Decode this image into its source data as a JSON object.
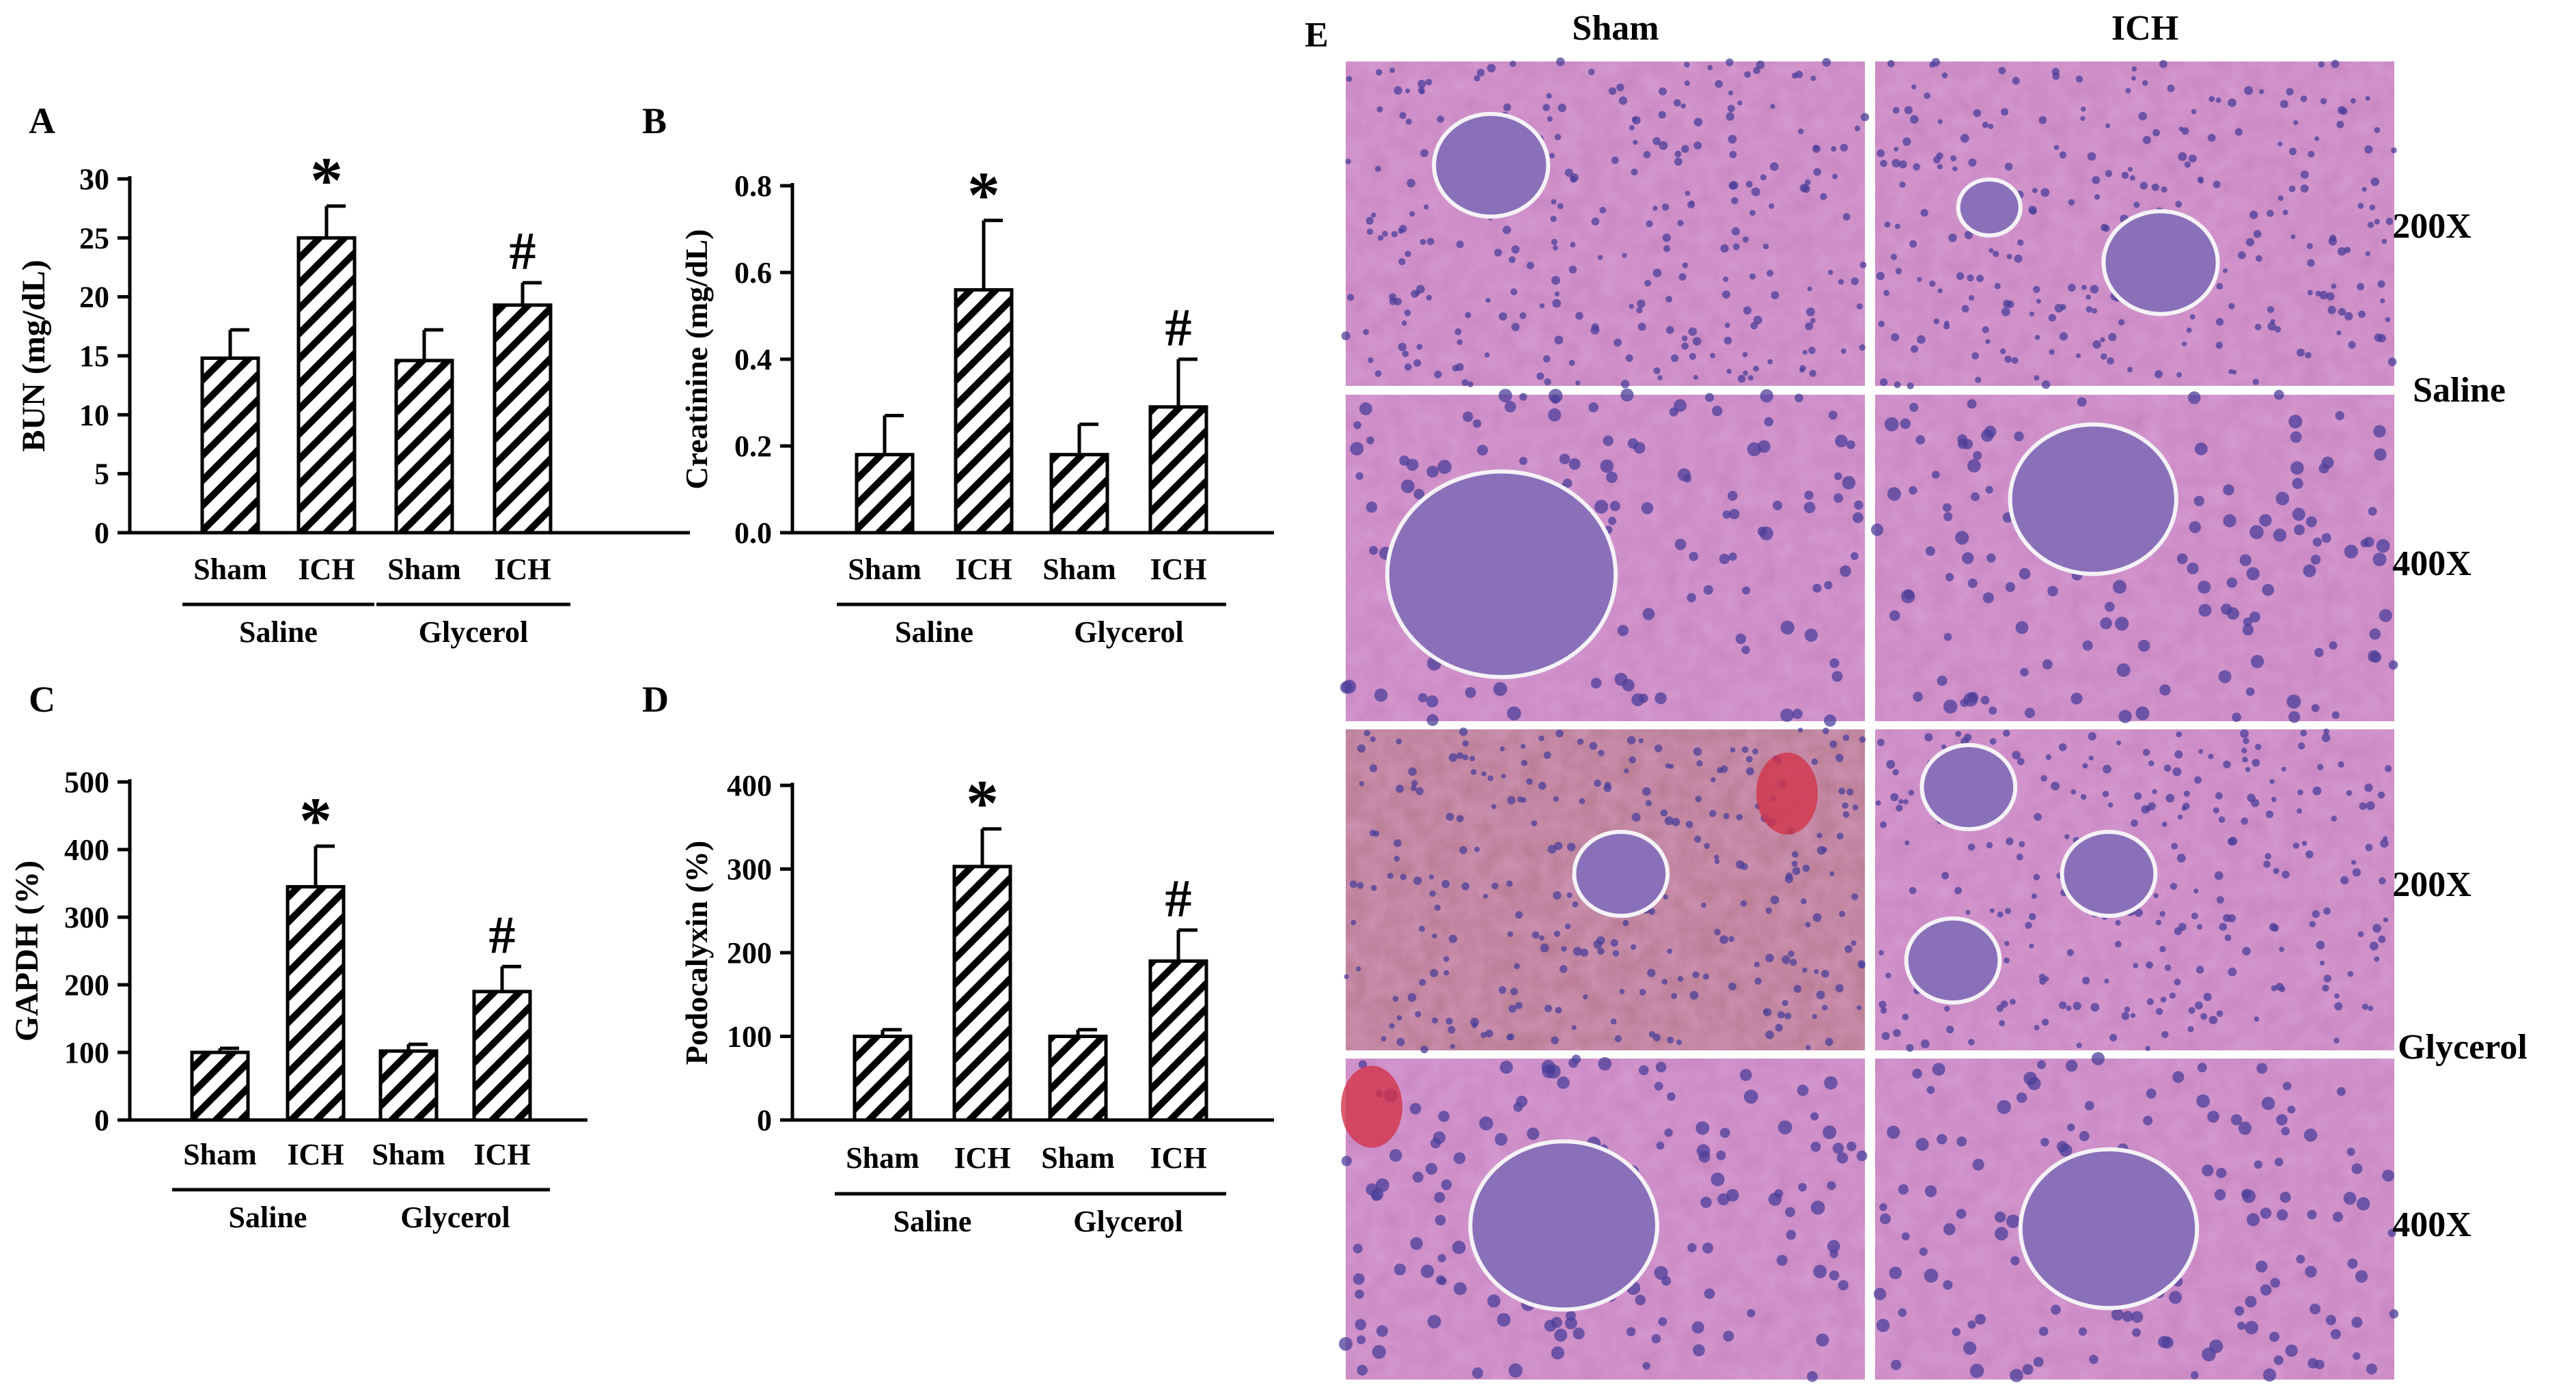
{
  "colors": {
    "ink": "#000000",
    "background": "#ffffff",
    "tissue_pink": "#c37fbc",
    "tissue_nuclei": "#4b3f9a",
    "blood": "#d2344a"
  },
  "chart_data": [
    {
      "panel": "A",
      "type": "bar",
      "title": "",
      "xlabel": "",
      "ylabel": "BUN (mg/dL)",
      "ylim": [
        0,
        30
      ],
      "yticks": [
        0,
        5,
        10,
        15,
        20,
        25,
        30
      ],
      "categories": [
        "Sham",
        "ICH",
        "Sham",
        "ICH"
      ],
      "groups": [
        {
          "label": "Saline",
          "span": [
            0,
            1
          ]
        },
        {
          "label": "Glycerol",
          "span": [
            2,
            3
          ]
        }
      ],
      "series": [
        {
          "values": [
            14.8,
            25.0,
            14.6,
            19.3
          ],
          "errors": [
            2.4,
            2.7,
            2.6,
            1.9
          ],
          "annotations": [
            "",
            "*",
            "",
            "#"
          ]
        }
      ],
      "grid": false
    },
    {
      "panel": "B",
      "type": "bar",
      "title": "",
      "xlabel": "",
      "ylabel": "Creatinine (mg/dL)",
      "ylim": [
        0,
        0.8
      ],
      "yticks": [
        "0.0",
        "0.2",
        "0.4",
        "0.6",
        "0.8"
      ],
      "categories": [
        "Sham",
        "ICH",
        "Sham",
        "ICH"
      ],
      "groups": [
        {
          "label": "Saline",
          "span": [
            0,
            1
          ]
        },
        {
          "label": "Glycerol",
          "span": [
            2,
            3
          ]
        }
      ],
      "series": [
        {
          "values": [
            0.18,
            0.56,
            0.18,
            0.29
          ],
          "errors": [
            0.09,
            0.16,
            0.07,
            0.11
          ],
          "annotations": [
            "",
            "*",
            "",
            "#"
          ]
        }
      ],
      "grid": false
    },
    {
      "panel": "C",
      "type": "bar",
      "title": "",
      "xlabel": "",
      "ylabel": "GAPDH (%)",
      "ylim": [
        0,
        500
      ],
      "yticks": [
        0,
        100,
        200,
        300,
        400,
        500
      ],
      "categories": [
        "Sham",
        "ICH",
        "Sham",
        "ICH"
      ],
      "groups": [
        {
          "label": "Saline",
          "span": [
            0,
            1
          ]
        },
        {
          "label": "Glycerol",
          "span": [
            2,
            3
          ]
        }
      ],
      "series": [
        {
          "values": [
            100,
            345,
            102,
            190
          ],
          "errors": [
            6,
            60,
            10,
            37
          ],
          "annotations": [
            "",
            "*",
            "",
            "#"
          ]
        }
      ],
      "grid": false
    },
    {
      "panel": "D",
      "type": "bar",
      "title": "",
      "xlabel": "",
      "ylabel": "Podocalyxin (%)",
      "ylim": [
        0,
        400
      ],
      "yticks": [
        0,
        100,
        200,
        300,
        400
      ],
      "categories": [
        "Sham",
        "ICH",
        "Sham",
        "ICH"
      ],
      "groups": [
        {
          "label": "Saline",
          "span": [
            0,
            1
          ]
        },
        {
          "label": "Glycerol",
          "span": [
            2,
            3
          ]
        }
      ],
      "series": [
        {
          "values": [
            100,
            303,
            100,
            190
          ],
          "errors": [
            8,
            45,
            8,
            37
          ],
          "annotations": [
            "",
            "*",
            "",
            "#"
          ]
        }
      ],
      "grid": false
    }
  ],
  "histology": {
    "panel": "E",
    "column_headers": [
      "Sham",
      "ICH"
    ],
    "row_groups": [
      {
        "label": "Saline",
        "magnifications": [
          "200X",
          "400X"
        ]
      },
      {
        "label": "Glycerol",
        "magnifications": [
          "200X",
          "400X"
        ]
      }
    ]
  }
}
